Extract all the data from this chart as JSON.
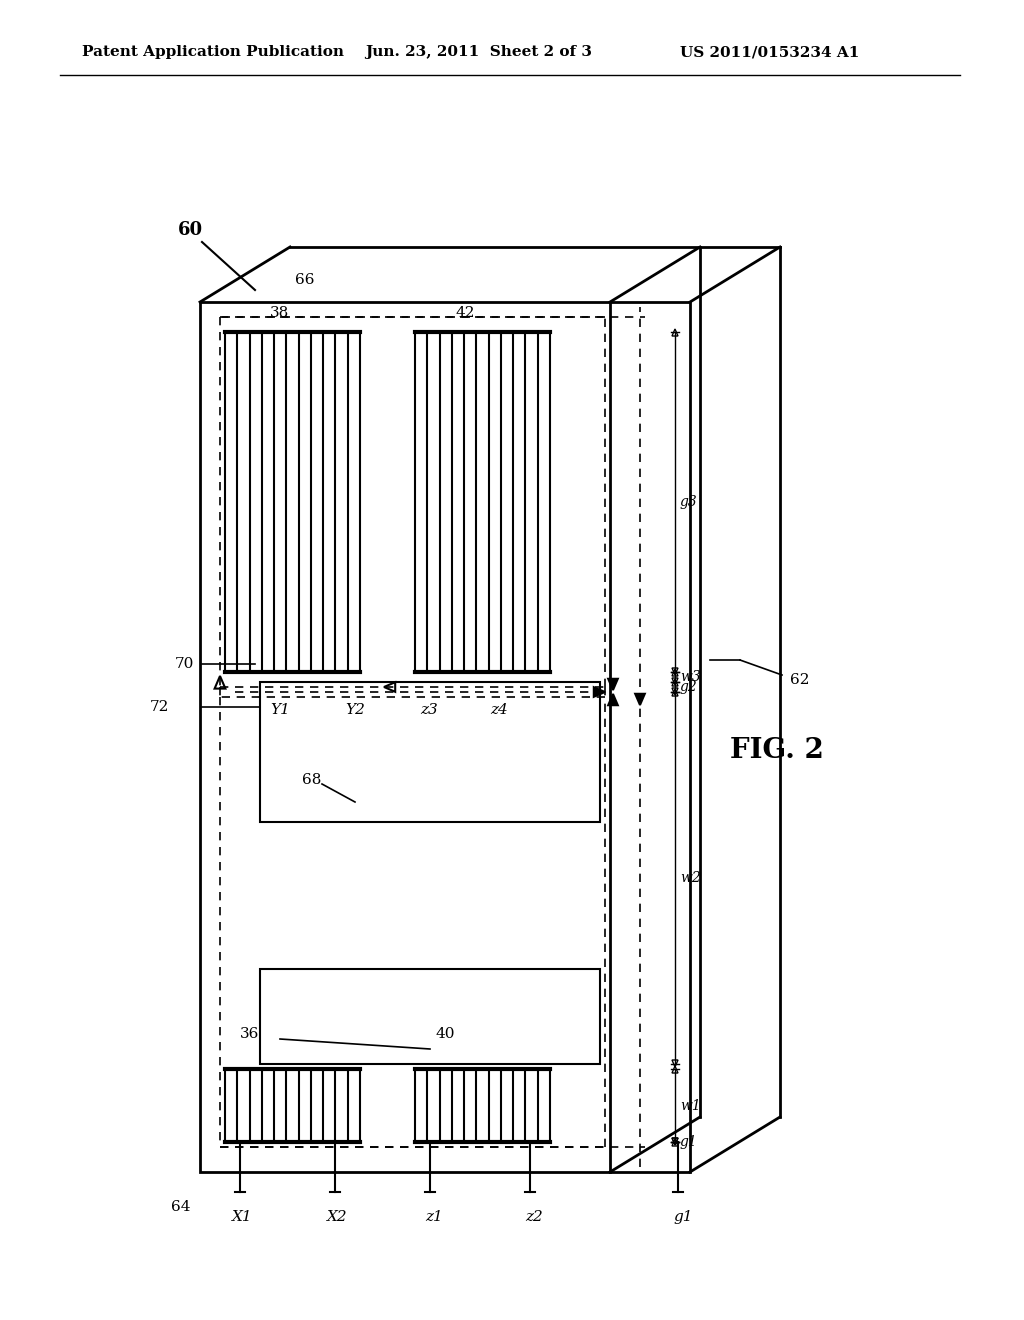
{
  "bg_color": "#ffffff",
  "line_color": "#000000",
  "header_text": "Patent Application Publication",
  "header_date": "Jun. 23, 2011  Sheet 2 of 3",
  "header_patent": "US 2011/0153234 A1",
  "fig_label": "FIG. 2",
  "label_60": "60",
  "label_62": "62",
  "label_64": "64",
  "label_66": "66",
  "label_68": "68",
  "label_70": "70",
  "label_72": "72",
  "label_38": "38",
  "label_40": "40",
  "label_42": "42",
  "label_36": "36",
  "label_X1": "X1",
  "label_X2": "X2",
  "label_z1": "z1",
  "label_z2": "z2",
  "label_g1": "g1",
  "label_w1": "w1",
  "label_g2": "g2",
  "label_w2": "w2",
  "label_Y1": "Y1",
  "label_Y2": "Y2",
  "label_z3": "z3",
  "label_z4": "z4",
  "label_g3": "g3",
  "label_w3": "w3"
}
